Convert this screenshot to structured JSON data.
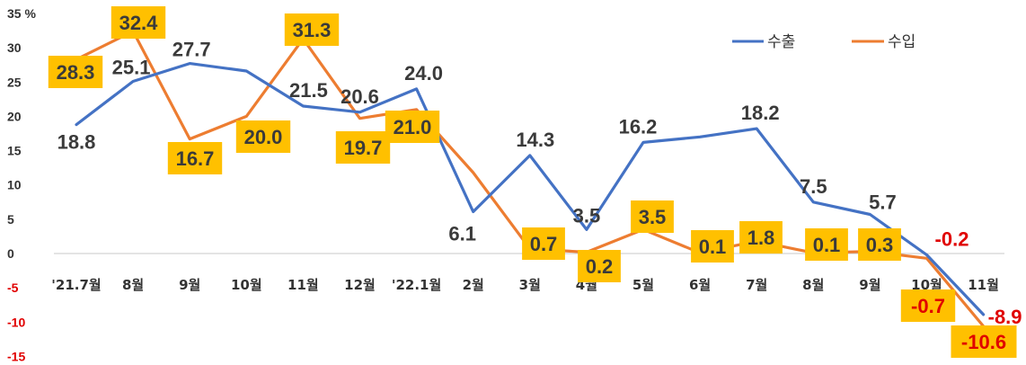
{
  "chart_data": {
    "type": "line",
    "y_unit": "%",
    "ylim": [
      -15,
      35
    ],
    "yticks": [
      35,
      30,
      25,
      20,
      15,
      10,
      5,
      0,
      -5,
      -10,
      -15
    ],
    "categories": [
      "'21.7월",
      "8월",
      "9월",
      "10월",
      "11월",
      "12월",
      "'22.1월",
      "2월",
      "3월",
      "4월",
      "5월",
      "6월",
      "7월",
      "8월",
      "9월",
      "10월",
      "11월"
    ],
    "series": [
      {
        "name": "수출",
        "color": "#4472c4",
        "values": [
          18.8,
          25.1,
          27.7,
          26.6,
          21.5,
          20.6,
          24.0,
          6.1,
          14.3,
          3.5,
          16.2,
          17.0,
          18.2,
          7.5,
          5.7,
          -0.2,
          -8.9
        ],
        "labels": [
          "18.8",
          "25.1",
          "27.7",
          "",
          "21.5",
          "20.6",
          "24.0",
          "6.1",
          "14.3",
          "3.5",
          "16.2",
          "",
          "18.2",
          "7.5",
          "5.7",
          "-0.2",
          "-8.9"
        ]
      },
      {
        "name": "수입",
        "color": "#ed7d31",
        "values": [
          28.3,
          32.4,
          16.7,
          20.0,
          31.3,
          19.7,
          21.0,
          11.8,
          0.7,
          0.2,
          3.5,
          0.1,
          1.8,
          0.1,
          0.3,
          -0.7,
          -10.6
        ],
        "labels": [
          "28.3",
          "32.4",
          "16.7",
          "20.0",
          "31.3",
          "19.7",
          "21.0",
          "",
          "0.7",
          "0.2",
          "3.5",
          "0.1",
          "1.8",
          "0.1",
          "0.3",
          "-0.7",
          "-10.6"
        ]
      }
    ],
    "legend_position": "top-right",
    "grid": false
  }
}
